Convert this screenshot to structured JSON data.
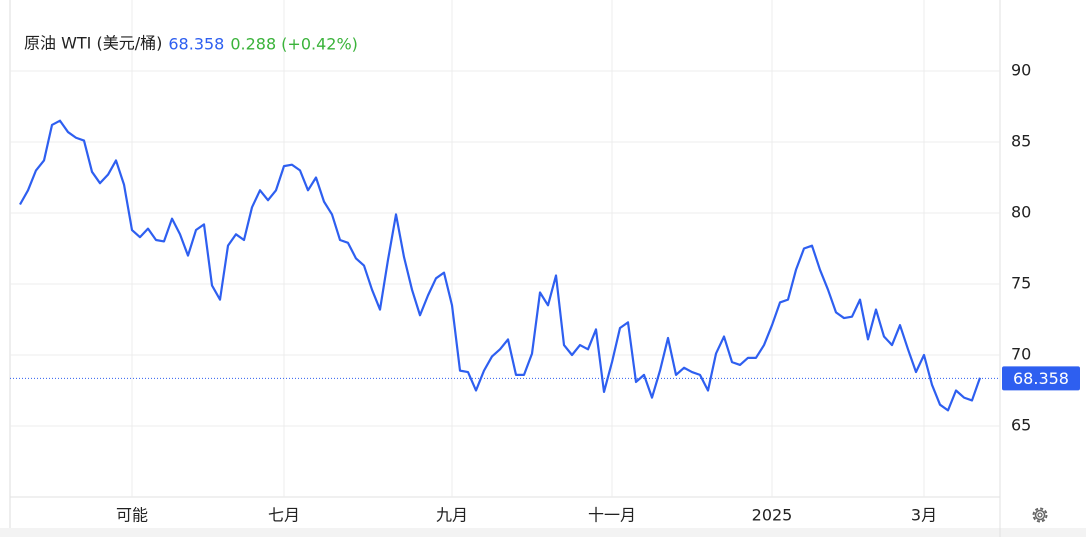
{
  "chart_data": {
    "type": "line",
    "title": "原油 WTI (美元/桶)",
    "last_price": 68.358,
    "change": 0.288,
    "change_pct": {
      "value": 0.42,
      "label": "(+0.42%)"
    },
    "color": "#2e5ff0",
    "categories": [
      null,
      null,
      null,
      null,
      null,
      null,
      null,
      null,
      null,
      null,
      null,
      null,
      null,
      null,
      "可能",
      null,
      null,
      null,
      null,
      null,
      null,
      null,
      null,
      null,
      null,
      null,
      null,
      null,
      null,
      null,
      null,
      null,
      null,
      "七月",
      null,
      null,
      null,
      null,
      null,
      null,
      null,
      null,
      null,
      null,
      null,
      null,
      null,
      null,
      null,
      null,
      null,
      null,
      null,
      null,
      "九月",
      null,
      null,
      null,
      null,
      null,
      null,
      null,
      null,
      null,
      null,
      null,
      null,
      null,
      null,
      null,
      null,
      null,
      null,
      null,
      "十一月",
      null,
      null,
      null,
      null,
      null,
      null,
      null,
      null,
      null,
      null,
      null,
      null,
      null,
      null,
      null,
      null,
      null,
      null,
      null,
      "2025",
      null,
      null,
      null,
      null,
      null,
      null,
      null,
      null,
      null,
      null,
      null,
      null,
      null,
      null,
      null,
      null,
      null,
      null,
      "3月",
      null,
      null,
      null,
      null,
      null,
      null,
      null
    ],
    "values": [
      80.6,
      81.6,
      83.0,
      83.7,
      86.2,
      86.5,
      85.7,
      85.3,
      85.1,
      82.9,
      82.1,
      82.7,
      83.7,
      82.0,
      78.8,
      78.3,
      78.9,
      78.1,
      78.0,
      79.6,
      78.5,
      77.0,
      78.8,
      79.2,
      74.9,
      73.9,
      77.7,
      78.5,
      78.1,
      80.4,
      81.6,
      80.9,
      81.6,
      83.3,
      83.4,
      83.0,
      81.6,
      82.5,
      80.8,
      79.9,
      78.1,
      77.9,
      76.8,
      76.3,
      74.6,
      73.2,
      76.7,
      79.9,
      76.9,
      74.6,
      72.8,
      74.2,
      75.4,
      75.8,
      73.5,
      68.9,
      68.8,
      67.5,
      68.9,
      69.9,
      70.4,
      71.1,
      68.6,
      68.6,
      70.1,
      74.4,
      73.5,
      75.6,
      70.7,
      70.0,
      70.7,
      70.4,
      71.8,
      67.4,
      69.5,
      71.9,
      72.3,
      68.1,
      68.6,
      67.0,
      68.9,
      71.2,
      68.6,
      69.1,
      68.8,
      68.6,
      67.5,
      70.1,
      71.3,
      69.5,
      69.3,
      69.8,
      69.8,
      70.7,
      72.1,
      73.7,
      73.9,
      76.0,
      77.5,
      77.7,
      76.0,
      74.6,
      73.0,
      72.6,
      72.7,
      73.9,
      71.1,
      73.2,
      71.3,
      70.7,
      72.1,
      70.4,
      68.8,
      70.0,
      67.9,
      66.5,
      66.1,
      67.5,
      67.0,
      66.8,
      68.4
    ],
    "ylim": [
      60,
      95
    ],
    "yticks": [
      65,
      70,
      75,
      80,
      85,
      90
    ],
    "grid": true
  }
}
